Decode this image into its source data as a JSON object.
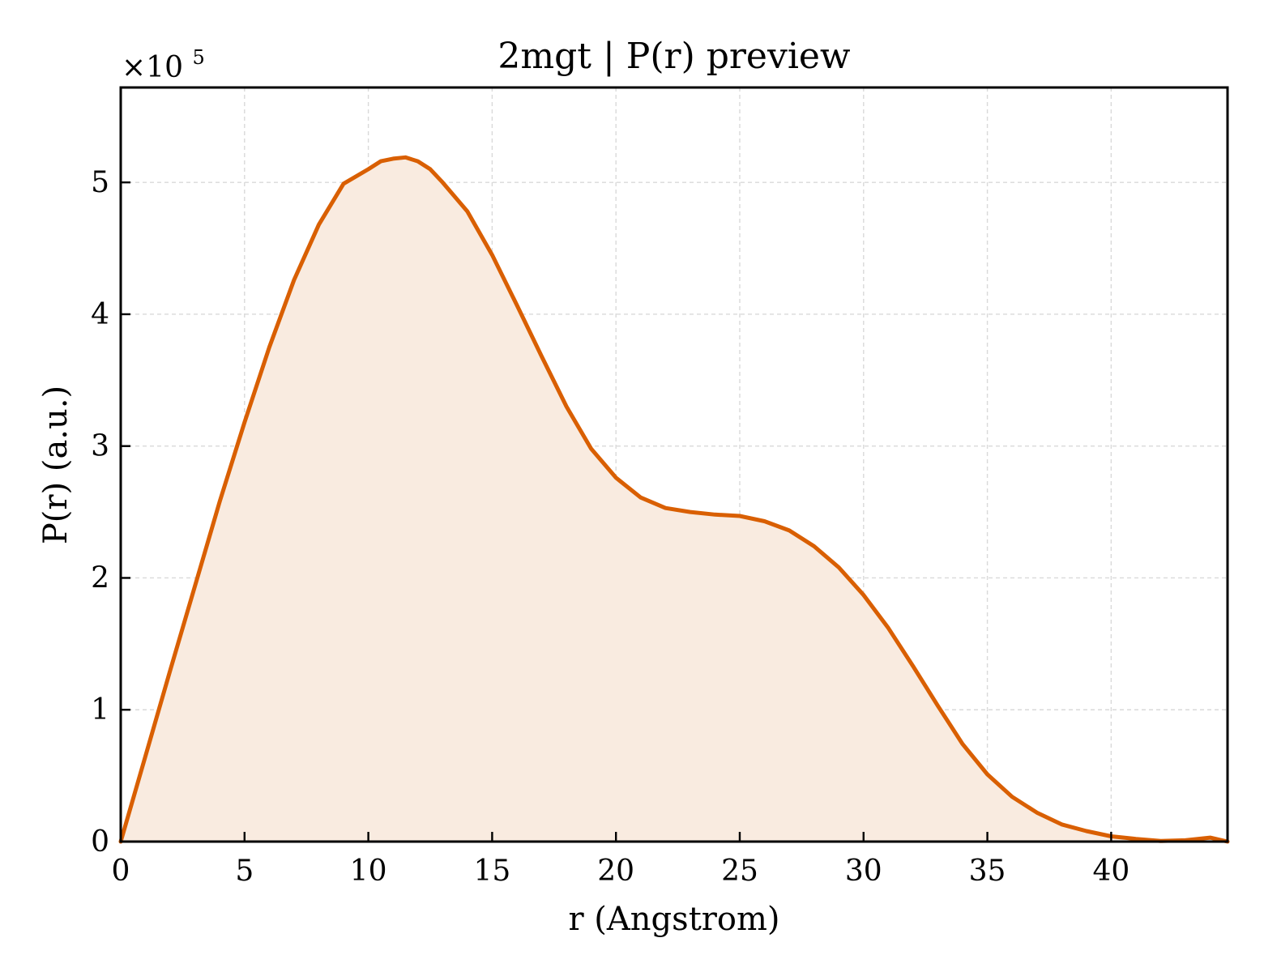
{
  "chart_data": {
    "type": "area",
    "title": "2mgt | P(r) preview",
    "xlabel": "r (Angstrom)",
    "ylabel": "P(r) (a.u.)",
    "y_multiplier_label": "×10",
    "y_multiplier_exponent": "5",
    "xlim": [
      0,
      44.7
    ],
    "ylim": [
      0,
      5.72
    ],
    "x_ticks": [
      0,
      5,
      10,
      15,
      20,
      25,
      30,
      35,
      40
    ],
    "y_ticks": [
      0,
      1,
      2,
      3,
      4,
      5
    ],
    "grid": true,
    "line_color": "#d95f02",
    "fill_color": "#f9ebe0",
    "series": [
      {
        "x": [
          0,
          1,
          2,
          3,
          4,
          5,
          6,
          7,
          8,
          9,
          10,
          10.5,
          11,
          11.5,
          12,
          12.5,
          13,
          14,
          15,
          16,
          17,
          18,
          19,
          20,
          21,
          22,
          23,
          24,
          25,
          26,
          27,
          28,
          29,
          30,
          31,
          32,
          33,
          34,
          35,
          36,
          37,
          38,
          39,
          40,
          41,
          42,
          43,
          44,
          44.7
        ],
        "y": [
          0,
          0.65,
          1.3,
          1.94,
          2.58,
          3.18,
          3.75,
          4.26,
          4.68,
          4.99,
          5.1,
          5.16,
          5.18,
          5.19,
          5.16,
          5.1,
          5.0,
          4.78,
          4.45,
          4.07,
          3.68,
          3.3,
          2.98,
          2.76,
          2.61,
          2.53,
          2.5,
          2.48,
          2.47,
          2.43,
          2.36,
          2.24,
          2.08,
          1.87,
          1.62,
          1.33,
          1.03,
          0.74,
          0.51,
          0.34,
          0.22,
          0.13,
          0.08,
          0.04,
          0.02,
          0.005,
          0.01,
          0.03,
          0.0
        ]
      }
    ]
  }
}
